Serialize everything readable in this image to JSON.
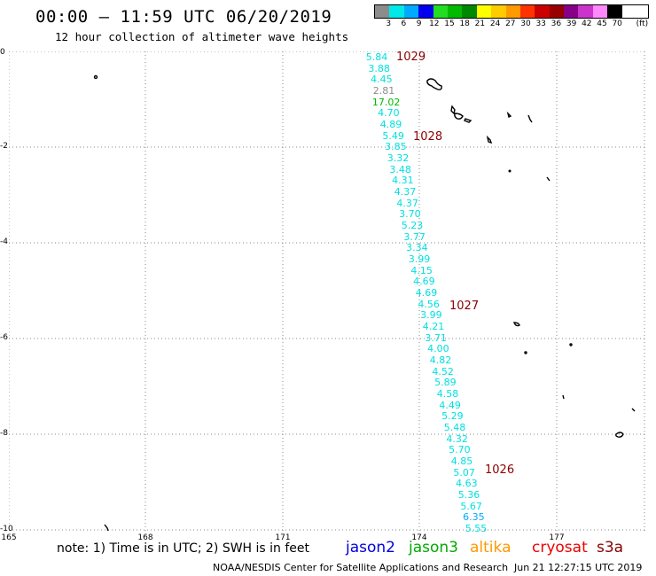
{
  "header": {
    "title": "00:00 – 11:59 UTC 06/20/2019",
    "subtitle": "12 hour collection of altimeter wave heights"
  },
  "legend": {
    "unit": "(ft)",
    "bins": [
      {
        "label": "3",
        "color": "#8c8c8c"
      },
      {
        "label": "6",
        "color": "#00e8e8"
      },
      {
        "label": "9",
        "color": "#00aaff"
      },
      {
        "label": "12",
        "color": "#0000ee"
      },
      {
        "label": "15",
        "color": "#22dd22"
      },
      {
        "label": "18",
        "color": "#00bb00"
      },
      {
        "label": "21",
        "color": "#008800"
      },
      {
        "label": "24",
        "color": "#ffff00"
      },
      {
        "label": "27",
        "color": "#ffcc00"
      },
      {
        "label": "30",
        "color": "#ff9900"
      },
      {
        "label": "33",
        "color": "#ff3300"
      },
      {
        "label": "36",
        "color": "#cc0000"
      },
      {
        "label": "39",
        "color": "#990000"
      },
      {
        "label": "42",
        "color": "#880088"
      },
      {
        "label": "45",
        "color": "#cc33cc"
      },
      {
        "label": "70",
        "color": "#ff88ff"
      },
      {
        "label": "",
        "color": "#000000"
      }
    ]
  },
  "axes": {
    "y_labels": [
      "0",
      "-2",
      "-4",
      "-6",
      "-8",
      "-10"
    ],
    "x_labels": [
      "165",
      "168",
      "171",
      "174",
      "177"
    ]
  },
  "observations": [
    {
      "v": "5.84",
      "c": "#00e0e0"
    },
    {
      "v": "3.88",
      "c": "#00e0e0"
    },
    {
      "v": "4.45",
      "c": "#00e0e0"
    },
    {
      "v": "2.81",
      "c": "#8c8c8c"
    },
    {
      "v": "17.02",
      "c": "#00bb00"
    },
    {
      "v": "4.70",
      "c": "#00e0e0"
    },
    {
      "v": "4.89",
      "c": "#00e0e0"
    },
    {
      "v": "5.49",
      "c": "#00e0e0"
    },
    {
      "v": "3.85",
      "c": "#00e0e0"
    },
    {
      "v": "3.32",
      "c": "#00e0e0"
    },
    {
      "v": "3.48",
      "c": "#00e0e0"
    },
    {
      "v": "4.31",
      "c": "#00e0e0"
    },
    {
      "v": "4.37",
      "c": "#00e0e0"
    },
    {
      "v": "4.37",
      "c": "#00e0e0"
    },
    {
      "v": "3.70",
      "c": "#00e0e0"
    },
    {
      "v": "5.23",
      "c": "#00e0e0"
    },
    {
      "v": "3.77",
      "c": "#00e0e0"
    },
    {
      "v": "3.34",
      "c": "#00e0e0"
    },
    {
      "v": "3.99",
      "c": "#00e0e0"
    },
    {
      "v": "4.15",
      "c": "#00e0e0"
    },
    {
      "v": "4.69",
      "c": "#00e0e0"
    },
    {
      "v": "4.69",
      "c": "#00e0e0"
    },
    {
      "v": "4.56",
      "c": "#00e0e0"
    },
    {
      "v": "3.99",
      "c": "#00e0e0"
    },
    {
      "v": "4.21",
      "c": "#00e0e0"
    },
    {
      "v": "3.71",
      "c": "#00e0e0"
    },
    {
      "v": "4.00",
      "c": "#00e0e0"
    },
    {
      "v": "4.82",
      "c": "#00e0e0"
    },
    {
      "v": "4.52",
      "c": "#00e0e0"
    },
    {
      "v": "5.89",
      "c": "#00e0e0"
    },
    {
      "v": "4.58",
      "c": "#00e0e0"
    },
    {
      "v": "4.49",
      "c": "#00e0e0"
    },
    {
      "v": "5.29",
      "c": "#00e0e0"
    },
    {
      "v": "5.48",
      "c": "#00e0e0"
    },
    {
      "v": "4.32",
      "c": "#00e0e0"
    },
    {
      "v": "5.70",
      "c": "#00e0e0"
    },
    {
      "v": "4.85",
      "c": "#00e0e0"
    },
    {
      "v": "5.07",
      "c": "#00e0e0"
    },
    {
      "v": "4.63",
      "c": "#00e0e0"
    },
    {
      "v": "5.36",
      "c": "#00e0e0"
    },
    {
      "v": "5.67",
      "c": "#00e0e0"
    },
    {
      "v": "6.35",
      "c": "#00aaff"
    },
    {
      "v": "5.55",
      "c": "#00e0e0"
    }
  ],
  "pressure_labels": [
    "1029",
    "1028",
    "1027",
    "1026"
  ],
  "note": "note: 1) Time is in UTC; 2) SWH is in feet",
  "satellites": [
    {
      "name": "jason2",
      "color": "#0000dd"
    },
    {
      "name": "jason3",
      "color": "#00aa00"
    },
    {
      "name": "altika",
      "color": "#ff9900"
    },
    {
      "name": "cryosat",
      "color": "#ee0000"
    },
    {
      "name": "s3a",
      "color": "#880000"
    }
  ],
  "footer": {
    "credit": "NOAA/NESDIS Center for Satellite Applications and Research",
    "timestamp": "Jun 21 12:27:15 UTC 2019"
  }
}
